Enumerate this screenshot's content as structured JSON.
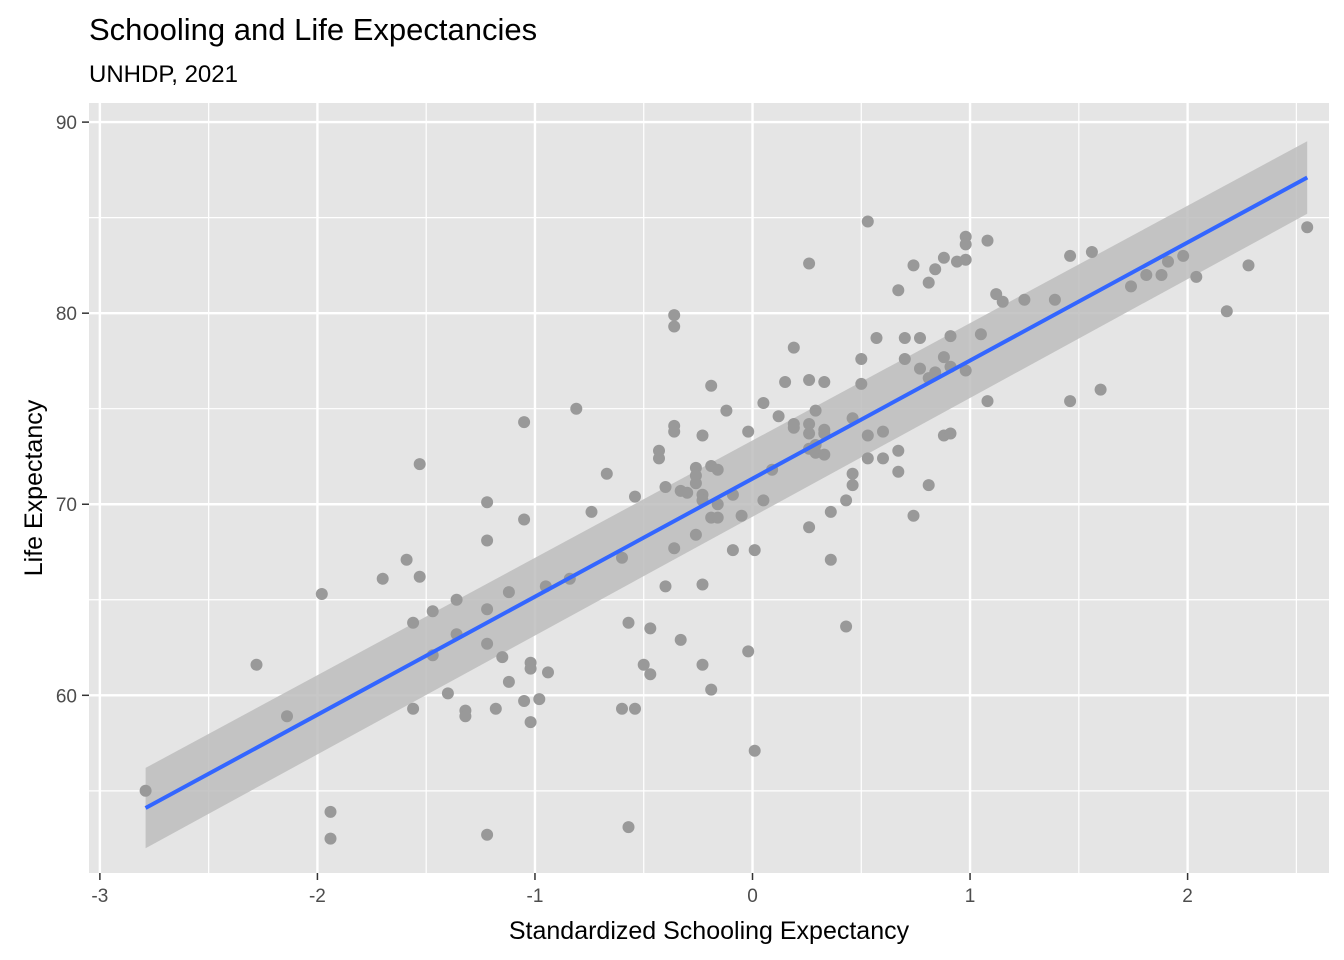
{
  "chart_data": {
    "type": "scatter",
    "title": "Schooling and Life Expectancies",
    "subtitle": "UNHDP, 2021",
    "xlabel": "Standardized Schooling Expectancy",
    "ylabel": "Life Expectancy",
    "xlim": [
      -3.05,
      2.65
    ],
    "ylim": [
      50.7,
      91.0
    ],
    "x_ticks": [
      -3,
      -2,
      -1,
      0,
      1,
      2
    ],
    "x_tick_labels": [
      "-3",
      "-2",
      "-1",
      "0",
      "1",
      "2"
    ],
    "y_ticks": [
      60,
      70,
      80,
      90
    ],
    "y_tick_labels": [
      "60",
      "70",
      "80",
      "90"
    ],
    "grid": true,
    "legend": "none",
    "colors": {
      "panel": "#e5e5e5",
      "grid": "#ffffff",
      "points": "#999999",
      "fit_line": "#3366ff",
      "confidence_band": "#bdbdbd"
    },
    "fit": {
      "method": "linear",
      "x": [
        -2.79,
        2.55
      ],
      "y": [
        54.1,
        87.1
      ],
      "ci_lower": [
        52.0,
        85.2
      ],
      "ci_upper": [
        56.2,
        89.0
      ]
    },
    "points": [
      [
        -2.79,
        55.0
      ],
      [
        -2.28,
        61.6
      ],
      [
        -2.14,
        58.9
      ],
      [
        -1.98,
        65.3
      ],
      [
        -1.94,
        53.9
      ],
      [
        -1.94,
        52.5
      ],
      [
        -1.7,
        66.1
      ],
      [
        -1.59,
        67.1
      ],
      [
        -1.56,
        63.8
      ],
      [
        -1.56,
        59.3
      ],
      [
        -1.53,
        72.1
      ],
      [
        -1.53,
        66.2
      ],
      [
        -1.47,
        64.4
      ],
      [
        -1.47,
        62.1
      ],
      [
        -1.4,
        60.1
      ],
      [
        -1.36,
        65.0
      ],
      [
        -1.36,
        63.2
      ],
      [
        -1.32,
        59.2
      ],
      [
        -1.32,
        58.9
      ],
      [
        -1.22,
        70.1
      ],
      [
        -1.22,
        68.1
      ],
      [
        -1.22,
        64.5
      ],
      [
        -1.22,
        62.7
      ],
      [
        -1.22,
        52.7
      ],
      [
        -1.18,
        59.3
      ],
      [
        -1.15,
        62.0
      ],
      [
        -1.12,
        65.4
      ],
      [
        -1.12,
        60.7
      ],
      [
        -1.05,
        74.3
      ],
      [
        -1.05,
        69.2
      ],
      [
        -1.05,
        59.7
      ],
      [
        -1.02,
        61.7
      ],
      [
        -1.02,
        61.4
      ],
      [
        -1.02,
        58.6
      ],
      [
        -0.98,
        59.8
      ],
      [
        -0.95,
        65.7
      ],
      [
        -0.94,
        61.2
      ],
      [
        -0.84,
        66.1
      ],
      [
        -0.81,
        75.0
      ],
      [
        -0.74,
        69.6
      ],
      [
        -0.67,
        71.6
      ],
      [
        -0.6,
        67.2
      ],
      [
        -0.6,
        59.3
      ],
      [
        -0.57,
        63.8
      ],
      [
        -0.57,
        53.1
      ],
      [
        -0.54,
        70.4
      ],
      [
        -0.54,
        59.3
      ],
      [
        -0.5,
        61.6
      ],
      [
        -0.47,
        63.5
      ],
      [
        -0.47,
        61.1
      ],
      [
        -0.43,
        72.8
      ],
      [
        -0.43,
        72.4
      ],
      [
        -0.4,
        70.9
      ],
      [
        -0.4,
        65.7
      ],
      [
        -0.36,
        79.9
      ],
      [
        -0.36,
        79.3
      ],
      [
        -0.36,
        74.1
      ],
      [
        -0.36,
        73.8
      ],
      [
        -0.36,
        67.7
      ],
      [
        -0.33,
        70.7
      ],
      [
        -0.33,
        62.9
      ],
      [
        -0.3,
        70.6
      ],
      [
        -0.26,
        71.9
      ],
      [
        -0.26,
        71.5
      ],
      [
        -0.26,
        71.1
      ],
      [
        -0.26,
        68.4
      ],
      [
        -0.23,
        73.6
      ],
      [
        -0.23,
        70.5
      ],
      [
        -0.23,
        70.2
      ],
      [
        -0.23,
        65.8
      ],
      [
        -0.23,
        61.6
      ],
      [
        -0.19,
        76.2
      ],
      [
        -0.19,
        72.0
      ],
      [
        -0.19,
        69.3
      ],
      [
        -0.19,
        60.3
      ],
      [
        -0.16,
        71.8
      ],
      [
        -0.16,
        70.0
      ],
      [
        -0.16,
        69.3
      ],
      [
        -0.12,
        74.9
      ],
      [
        -0.09,
        70.5
      ],
      [
        -0.09,
        67.6
      ],
      [
        -0.05,
        69.4
      ],
      [
        -0.02,
        73.8
      ],
      [
        -0.02,
        62.3
      ],
      [
        0.01,
        67.6
      ],
      [
        0.01,
        57.1
      ],
      [
        0.05,
        75.3
      ],
      [
        0.05,
        70.2
      ],
      [
        0.09,
        71.8
      ],
      [
        0.12,
        74.6
      ],
      [
        0.15,
        76.4
      ],
      [
        0.19,
        78.2
      ],
      [
        0.19,
        74.2
      ],
      [
        0.19,
        74.0
      ],
      [
        0.26,
        82.6
      ],
      [
        0.26,
        76.5
      ],
      [
        0.26,
        74.2
      ],
      [
        0.26,
        73.7
      ],
      [
        0.26,
        72.9
      ],
      [
        0.26,
        68.8
      ],
      [
        0.29,
        74.9
      ],
      [
        0.29,
        73.1
      ],
      [
        0.29,
        72.7
      ],
      [
        0.33,
        76.4
      ],
      [
        0.33,
        73.9
      ],
      [
        0.33,
        73.7
      ],
      [
        0.33,
        72.6
      ],
      [
        0.36,
        69.6
      ],
      [
        0.36,
        67.1
      ],
      [
        0.43,
        70.2
      ],
      [
        0.43,
        63.6
      ],
      [
        0.46,
        74.5
      ],
      [
        0.46,
        71.6
      ],
      [
        0.46,
        71.0
      ],
      [
        0.5,
        77.6
      ],
      [
        0.5,
        76.3
      ],
      [
        0.53,
        84.8
      ],
      [
        0.53,
        73.6
      ],
      [
        0.53,
        72.4
      ],
      [
        0.57,
        78.7
      ],
      [
        0.6,
        73.8
      ],
      [
        0.6,
        72.4
      ],
      [
        0.67,
        81.2
      ],
      [
        0.67,
        72.8
      ],
      [
        0.67,
        71.7
      ],
      [
        0.7,
        78.7
      ],
      [
        0.7,
        77.6
      ],
      [
        0.74,
        82.5
      ],
      [
        0.74,
        69.4
      ],
      [
        0.77,
        78.7
      ],
      [
        0.77,
        77.1
      ],
      [
        0.81,
        81.6
      ],
      [
        0.81,
        76.6
      ],
      [
        0.81,
        71.0
      ],
      [
        0.84,
        82.3
      ],
      [
        0.84,
        76.9
      ],
      [
        0.88,
        82.9
      ],
      [
        0.88,
        77.7
      ],
      [
        0.88,
        73.6
      ],
      [
        0.91,
        78.8
      ],
      [
        0.91,
        77.2
      ],
      [
        0.91,
        73.7
      ],
      [
        0.94,
        82.7
      ],
      [
        0.98,
        84.0
      ],
      [
        0.98,
        83.6
      ],
      [
        0.98,
        82.8
      ],
      [
        0.98,
        77.0
      ],
      [
        1.05,
        78.9
      ],
      [
        1.08,
        83.8
      ],
      [
        1.08,
        75.4
      ],
      [
        1.12,
        81.0
      ],
      [
        1.15,
        80.6
      ],
      [
        1.25,
        80.7
      ],
      [
        1.39,
        80.7
      ],
      [
        1.46,
        83.0
      ],
      [
        1.46,
        75.4
      ],
      [
        1.56,
        83.2
      ],
      [
        1.6,
        76.0
      ],
      [
        1.74,
        81.4
      ],
      [
        1.81,
        82.0
      ],
      [
        1.88,
        82.0
      ],
      [
        1.91,
        82.7
      ],
      [
        1.98,
        83.0
      ],
      [
        2.04,
        81.9
      ],
      [
        2.18,
        80.1
      ],
      [
        2.28,
        82.5
      ],
      [
        2.55,
        84.5
      ]
    ]
  }
}
